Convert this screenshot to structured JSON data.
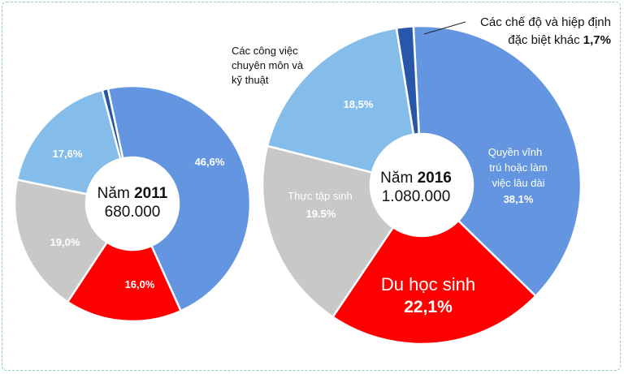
{
  "colors": {
    "permanent": "#6495e0",
    "intern": "#c8c8c8",
    "student": "#ff0000",
    "technical": "#85bdea",
    "special": "#2856a8"
  },
  "chart_data": [
    {
      "type": "pie",
      "center_label_prefix": "Năm",
      "year": "2011",
      "total": "680.000",
      "series": [
        {
          "key": "permanent",
          "value": 46.6,
          "label": "46,6%"
        },
        {
          "key": "student",
          "value": 16.0,
          "label": "16,0%"
        },
        {
          "key": "intern",
          "value": 19.0,
          "label": "19,0%"
        },
        {
          "key": "technical",
          "value": 17.6,
          "label": "17,6%"
        },
        {
          "key": "special",
          "value": 0.8,
          "label": ""
        }
      ]
    },
    {
      "type": "pie",
      "center_label_prefix": "Năm",
      "year": "2016",
      "total": "1.080.000",
      "series": [
        {
          "key": "permanent",
          "value": 38.1,
          "label": "38,1%",
          "name_lines": [
            "Quyền vĩnh",
            "trú hoặc làm",
            "việc lâu dài"
          ]
        },
        {
          "key": "student",
          "value": 22.1,
          "label": "22,1%",
          "name_lines": [
            "Du học sinh"
          ]
        },
        {
          "key": "intern",
          "value": 19.5,
          "label": "19.5%",
          "name_lines": [
            "Thực tập sinh"
          ]
        },
        {
          "key": "technical",
          "value": 18.5,
          "label": "18,5%"
        },
        {
          "key": "special",
          "value": 1.7,
          "label": "1,7%"
        }
      ]
    }
  ],
  "callouts": {
    "technical_lines": [
      "Các công việc",
      "chuyên môn và",
      "kỹ thuật"
    ],
    "special_line1": "Các chế độ và hiệp định",
    "special_line2": "đặc biệt khác",
    "special_value": "1,7%"
  }
}
